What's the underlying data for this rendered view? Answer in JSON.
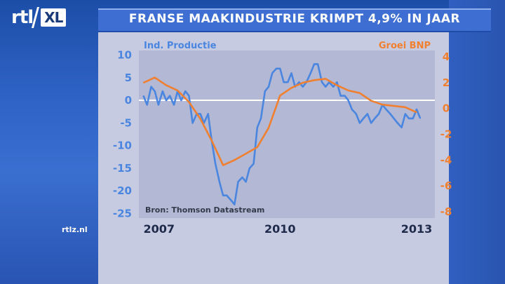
{
  "header": {
    "logo_text": "rtl",
    "logo_badge": "XL",
    "title": "FRANSE MAAKINDUSTRIE KRIMPT 4,9% IN JAAR"
  },
  "footer": {
    "site_label": "rtlz.nl"
  },
  "colors": {
    "left_series": "#4a86e0",
    "right_series": "#f08030",
    "plot_bg": "#b3b8d4",
    "panel_bg": "#c7cbe2",
    "brand_blue": "#2f63c6"
  },
  "chart_data": {
    "type": "line",
    "title": "FRANSE MAAKINDUSTRIE KRIMPT 4,9% IN JAAR",
    "source": "Bron: Thomson Datastream",
    "left_axis": {
      "label": "Ind. Productie",
      "ylim": [
        -26,
        11
      ],
      "ticks": [
        10,
        5,
        0,
        -5,
        -10,
        -15,
        -20,
        -25
      ]
    },
    "right_axis": {
      "label": "Groei BNP",
      "ylim": [
        -8.5,
        4.5
      ],
      "ticks": [
        4,
        2,
        0,
        -2,
        -4,
        -6,
        -8
      ]
    },
    "x_axis": {
      "range": [
        2006.9,
        2013.4
      ],
      "tick_labels": [
        "2007",
        "2010",
        "2013"
      ],
      "tick_values": [
        2007,
        2010,
        2013
      ]
    },
    "grid": false,
    "zero_line": true,
    "series": [
      {
        "name": "Ind. Productie",
        "axis": "left",
        "x": [
          2007.0,
          2007.08,
          2007.17,
          2007.25,
          2007.33,
          2007.42,
          2007.5,
          2007.58,
          2007.67,
          2007.75,
          2007.83,
          2007.92,
          2008.0,
          2008.08,
          2008.17,
          2008.25,
          2008.33,
          2008.42,
          2008.5,
          2008.58,
          2008.67,
          2008.75,
          2008.83,
          2008.92,
          2009.0,
          2009.08,
          2009.17,
          2009.25,
          2009.33,
          2009.42,
          2009.5,
          2009.58,
          2009.67,
          2009.75,
          2009.83,
          2009.92,
          2010.0,
          2010.08,
          2010.17,
          2010.25,
          2010.33,
          2010.42,
          2010.5,
          2010.58,
          2010.67,
          2010.75,
          2010.83,
          2010.92,
          2011.0,
          2011.08,
          2011.17,
          2011.25,
          2011.33,
          2011.42,
          2011.5,
          2011.58,
          2011.67,
          2011.75,
          2011.83,
          2011.92,
          2012.0,
          2012.08,
          2012.17,
          2012.25,
          2012.33,
          2012.42,
          2012.5,
          2012.58,
          2012.67,
          2012.75,
          2012.83,
          2012.92,
          2013.0,
          2013.08
        ],
        "values": [
          1,
          -1,
          3,
          2,
          -1,
          2,
          0,
          1,
          -1,
          2,
          0,
          2,
          1,
          -5,
          -3,
          -3,
          -5,
          -3,
          -9,
          -14,
          -18,
          -21,
          -21,
          -22,
          -23,
          -18,
          -17,
          -18,
          -15,
          -14,
          -6,
          -4,
          2,
          3,
          6,
          7,
          7,
          4,
          4,
          6,
          3,
          4,
          3,
          4,
          6,
          8,
          8,
          4,
          3,
          4,
          3,
          4,
          1,
          1,
          0,
          -2,
          -3,
          -5,
          -4,
          -3,
          -5,
          -4,
          -3,
          -1,
          -2,
          -3,
          -4,
          -5,
          -6,
          -3,
          -4,
          -4,
          -2,
          -4
        ]
      },
      {
        "name": "Groei BNP",
        "axis": "right",
        "x": [
          2007.0,
          2007.25,
          2007.5,
          2007.75,
          2008.0,
          2008.25,
          2008.5,
          2008.75,
          2009.0,
          2009.25,
          2009.5,
          2009.75,
          2010.0,
          2010.25,
          2010.5,
          2010.75,
          2011.0,
          2011.25,
          2011.5,
          2011.75,
          2012.0,
          2012.25,
          2012.5,
          2012.75,
          2013.0
        ],
        "values": [
          2.0,
          2.4,
          1.8,
          1.4,
          0.5,
          -0.8,
          -2.5,
          -4.4,
          -4.0,
          -3.5,
          -3.0,
          -1.5,
          1.0,
          1.6,
          2.0,
          2.2,
          2.3,
          1.8,
          1.4,
          1.2,
          0.6,
          0.3,
          0.2,
          0.1,
          -0.3
        ]
      }
    ]
  }
}
